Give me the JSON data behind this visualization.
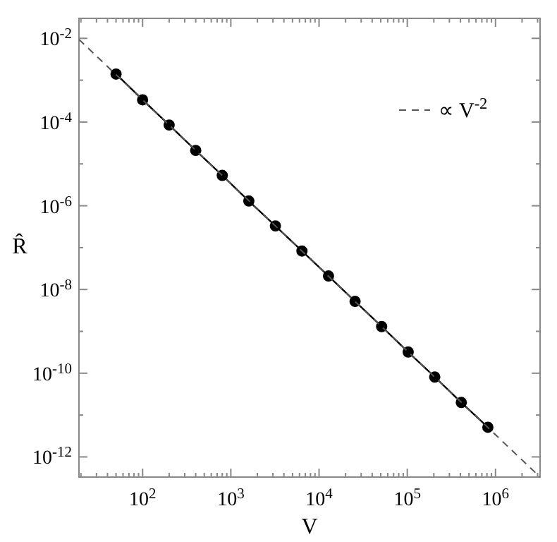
{
  "chart_data": {
    "type": "line",
    "xlabel": "V",
    "ylabel": "R̂",
    "log": "xy",
    "legend": "top right",
    "grid": false,
    "xlim": [
      19,
      3200000
    ],
    "ylim": [
      3.3e-13,
      0.03
    ],
    "xticks": [
      {
        "value": 20,
        "label": null
      },
      {
        "value": 30,
        "label": null
      },
      {
        "value": 40,
        "label": null
      },
      {
        "value": 50,
        "label": null
      },
      {
        "value": 60,
        "label": null
      },
      {
        "value": 70,
        "label": null
      },
      {
        "value": 80,
        "label": null
      },
      {
        "value": 90,
        "label": null
      },
      {
        "value": 100,
        "label": "10$^{2}$"
      },
      {
        "value": 200,
        "label": null
      },
      {
        "value": 300,
        "label": null
      },
      {
        "value": 400,
        "label": null
      },
      {
        "value": 500,
        "label": null
      },
      {
        "value": 600,
        "label": null
      },
      {
        "value": 700,
        "label": null
      },
      {
        "value": 800,
        "label": null
      },
      {
        "value": 900,
        "label": null
      },
      {
        "value": 1000,
        "label": "10$^{3}$"
      },
      {
        "value": 2000,
        "label": null
      },
      {
        "value": 3000,
        "label": null
      },
      {
        "value": 4000,
        "label": null
      },
      {
        "value": 5000,
        "label": null
      },
      {
        "value": 6000,
        "label": null
      },
      {
        "value": 7000,
        "label": null
      },
      {
        "value": 8000,
        "label": null
      },
      {
        "value": 9000,
        "label": null
      },
      {
        "value": 10000,
        "label": "10$^{4}$"
      },
      {
        "value": 20000,
        "label": null
      },
      {
        "value": 30000,
        "label": null
      },
      {
        "value": 40000,
        "label": null
      },
      {
        "value": 50000,
        "label": null
      },
      {
        "value": 60000,
        "label": null
      },
      {
        "value": 70000,
        "label": null
      },
      {
        "value": 80000,
        "label": null
      },
      {
        "value": 90000,
        "label": null
      },
      {
        "value": 100000,
        "label": "10$^{5}$"
      },
      {
        "value": 200000,
        "label": null
      },
      {
        "value": 300000,
        "label": null
      },
      {
        "value": 400000,
        "label": null
      },
      {
        "value": 500000,
        "label": null
      },
      {
        "value": 600000,
        "label": null
      },
      {
        "value": 700000,
        "label": null
      },
      {
        "value": 800000,
        "label": null
      },
      {
        "value": 900000,
        "label": null
      },
      {
        "value": 1000000,
        "label": "10$^{6}$"
      },
      {
        "value": 2000000,
        "label": null
      },
      {
        "value": 3000000,
        "label": null
      }
    ],
    "yticks": [
      {
        "value": 0.01,
        "label": "10$^{-2}$"
      },
      {
        "value": 0.001,
        "label": null
      },
      {
        "value": 0.0001,
        "label": "10$^{-4}$"
      },
      {
        "value": 1e-05,
        "label": null
      },
      {
        "value": 1e-06,
        "label": "10$^{-6}$"
      },
      {
        "value": 1e-07,
        "label": null
      },
      {
        "value": 1e-08,
        "label": "10$^{-8}$"
      },
      {
        "value": 1e-09,
        "label": null
      },
      {
        "value": 1e-10,
        "label": "10$^{-10}$"
      },
      {
        "value": 1e-11,
        "label": null
      },
      {
        "value": 1e-12,
        "label": "10$^{-12}$"
      }
    ],
    "series": [
      {
        "color": "#000000",
        "marker": "circle",
        "line_style": "solid",
        "x": [
          50,
          100,
          200,
          400,
          800,
          1600,
          3200,
          6400,
          12800,
          25600,
          51200,
          102400,
          204800,
          409600,
          819200
        ],
        "values": [
          0.0014,
          0.00034,
          8.5e-05,
          2.1e-05,
          5.3e-06,
          1.3e-06,
          3.3e-07,
          8.3e-08,
          2.1e-08,
          5.2e-09,
          1.3e-09,
          3.2e-10,
          8.1e-11,
          2e-11,
          5.1e-12
        ]
      },
      {
        "name": "∝ V$^{-2}$",
        "color": "#555555",
        "marker": "none",
        "line_style": "dashed",
        "x": [
          19,
          3200000
        ],
        "values": [
          0.0094,
          3.3e-13
        ]
      }
    ]
  }
}
